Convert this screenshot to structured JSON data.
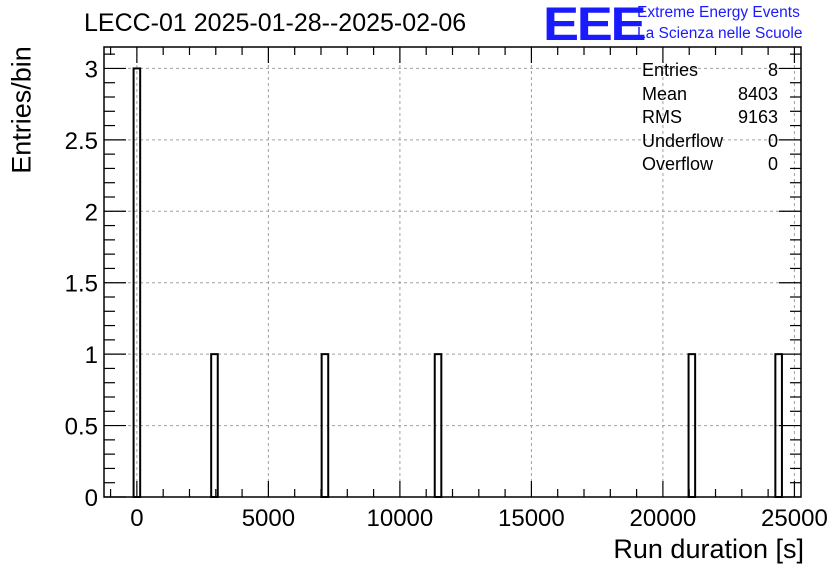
{
  "chart_data": {
    "type": "bar",
    "title": "LECC-01 2025-01-28--2025-02-06",
    "xlabel": "Run duration [s]",
    "ylabel": "Entries/bin",
    "xlim": [
      -1250,
      25250
    ],
    "ylim": [
      0,
      3.15
    ],
    "x_ticks": [
      0,
      5000,
      10000,
      15000,
      20000,
      25000
    ],
    "y_ticks": [
      0,
      0.5,
      1,
      1.5,
      2,
      2.5,
      3
    ],
    "y_tick_labels": [
      "0",
      "0.5",
      "1",
      "1.5",
      "2",
      "2.5",
      "3"
    ],
    "grid": true,
    "bin_width": 250,
    "bins": [
      {
        "x": 0,
        "count": 3
      },
      {
        "x": 2950,
        "count": 1
      },
      {
        "x": 7150,
        "count": 1
      },
      {
        "x": 11450,
        "count": 1
      },
      {
        "x": 21100,
        "count": 1
      },
      {
        "x": 24400,
        "count": 1
      }
    ],
    "stats": [
      {
        "label": "Entries",
        "value": "8"
      },
      {
        "label": "Mean",
        "value": "8403"
      },
      {
        "label": "RMS",
        "value": "9163"
      },
      {
        "label": "Underflow",
        "value": "0"
      },
      {
        "label": "Overflow",
        "value": "0"
      }
    ]
  },
  "logo": {
    "mark": "EEE",
    "line1": "Extreme Energy Events",
    "line2": "La Scienza nelle Scuole",
    "color": "#1a1aff"
  }
}
